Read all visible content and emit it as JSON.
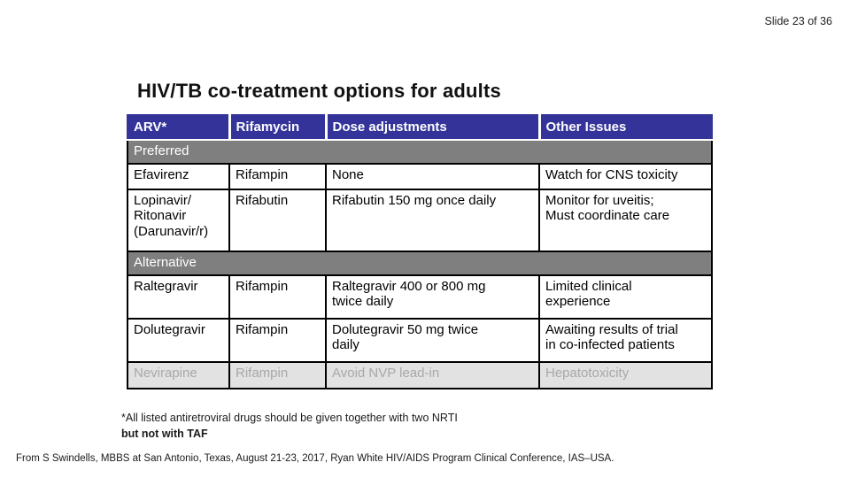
{
  "slide": {
    "number_label": "Slide 23 of 36",
    "title": "HIV/TB co-treatment options for adults"
  },
  "table": {
    "columns": [
      "ARV*",
      "Rifamycin",
      "Dose adjustments",
      "Other Issues"
    ],
    "sections": [
      {
        "label": "Preferred",
        "rows": [
          {
            "muted": false,
            "cells": [
              "Efavirenz",
              "Rifampin",
              "None",
              "Watch for CNS toxicity"
            ]
          },
          {
            "muted": false,
            "cells": [
              "Lopinavir/\nRitonavir\n(Darunavir/r)",
              "Rifabutin",
              "Rifabutin 150 mg once daily",
              "Monitor for uveitis;\nMust coordinate care"
            ]
          }
        ]
      },
      {
        "label": "Alternative",
        "rows": [
          {
            "muted": false,
            "cells": [
              "Raltegravir",
              "Rifampin",
              "Raltegravir 400 or 800 mg\ntwice daily",
              "Limited clinical\nexperience"
            ]
          },
          {
            "muted": false,
            "cells": [
              "Dolutegravir",
              "Rifampin",
              "Dolutegravir 50 mg twice\ndaily",
              "Awaiting results of trial\nin co-infected patients"
            ]
          },
          {
            "muted": true,
            "cells": [
              "Nevirapine",
              "Rifampin",
              "Avoid NVP lead-in",
              "Hepatotoxicity"
            ]
          }
        ]
      }
    ]
  },
  "footnote": {
    "line1": "*All listed antiretroviral drugs should be given together with two NRTI",
    "line2_bold": "but not with TAF"
  },
  "citation": "From S Swindells, MBBS at San Antonio, Texas, August 21-23, 2017, Ryan White HIV/AIDS Program Clinical Conference, IAS–USA.",
  "colors": {
    "header_bg": "#333399",
    "header_text": "#ffffff",
    "band_bg": "#7f7f7f",
    "band_text": "#ffffff",
    "muted_bg": "#e2e2e2",
    "muted_text": "#a8a8a8",
    "border": "#000000"
  }
}
